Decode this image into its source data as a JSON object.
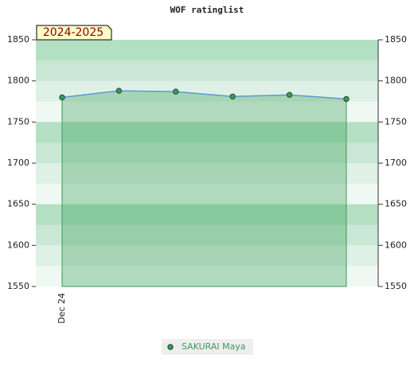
{
  "chart_data": {
    "type": "area",
    "title": "WOF ratinglist",
    "annotation": "2024-2025",
    "categories": [
      "Dec 24",
      null,
      null,
      null,
      null,
      null
    ],
    "series": [
      {
        "name": "SAKURAI Maya",
        "color": "#5b9bd5",
        "marker_color": "#3c9a5c",
        "values": [
          1780,
          1788,
          1787,
          1781,
          1783,
          1778
        ]
      }
    ],
    "ylim": [
      1550,
      1850
    ],
    "yticks": [
      1550,
      1600,
      1650,
      1700,
      1750,
      1800,
      1850
    ],
    "y2lim": [
      1550,
      1850
    ],
    "y2ticks": [
      1550,
      1600,
      1650,
      1700,
      1750,
      1800,
      1850
    ],
    "legend": "bottom"
  }
}
